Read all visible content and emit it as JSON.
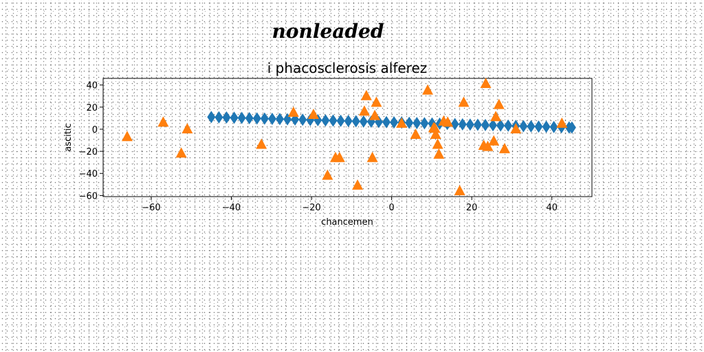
{
  "chart_data": {
    "type": "scatter",
    "suptitle": "nonleaded",
    "title": "i phacosclerosis alferez",
    "xlabel": "chancemen",
    "ylabel": "ascitic",
    "xlim": [
      -72,
      50
    ],
    "ylim": [
      -61,
      46
    ],
    "xticks": [
      -60,
      -40,
      -20,
      0,
      20,
      40
    ],
    "xtick_labels": [
      "−60",
      "−40",
      "−20",
      "0",
      "20",
      "40"
    ],
    "yticks": [
      40,
      20,
      0,
      -20,
      -40,
      -60
    ],
    "ytick_labels": [
      "40",
      "20",
      "0",
      "−20",
      "−40",
      "−60"
    ],
    "grid": false,
    "colors": {
      "diamond": "#1f77b4",
      "triangle": "#ff7f0e"
    },
    "series": [
      {
        "marker": "diamond",
        "color": "#1f77b4",
        "x": [
          -45,
          -43.1,
          -41.2,
          -39.3,
          -37.4,
          -35.5,
          -33.6,
          -31.7,
          -29.8,
          -27.9,
          -26.0,
          -24.1,
          -22.2,
          -20.3,
          -18.4,
          -16.5,
          -14.6,
          -12.7,
          -10.8,
          -8.9,
          -7.0,
          -5.1,
          -3.2,
          -1.3,
          0.6,
          2.5,
          4.4,
          6.3,
          8.2,
          10.1,
          12.0,
          13.9,
          15.8,
          17.7,
          19.6,
          21.5,
          23.4,
          25.3,
          27.2,
          29.1,
          31.0,
          32.9,
          34.8,
          36.7,
          38.6,
          40.5,
          42.4,
          44.3,
          45.0
        ],
        "y": [
          11,
          10.8,
          10.6,
          10.4,
          10.2,
          10.0,
          9.8,
          9.6,
          9.4,
          9.2,
          9.0,
          8.8,
          8.6,
          8.4,
          8.2,
          8.0,
          7.8,
          7.6,
          7.4,
          7.2,
          7.0,
          6.8,
          6.6,
          6.4,
          6.2,
          6.0,
          5.8,
          5.6,
          5.4,
          5.2,
          5.0,
          4.8,
          4.6,
          4.4,
          4.2,
          4.0,
          3.8,
          3.6,
          3.4,
          3.2,
          3.0,
          2.8,
          2.6,
          2.4,
          2.2,
          2.0,
          1.8,
          1.6,
          1.5
        ]
      },
      {
        "marker": "triangle",
        "color": "#ff7f0e",
        "x": [
          -66,
          -57,
          -52.5,
          -51,
          -32.5,
          -24.5,
          -19.5,
          -16,
          -14,
          -13,
          -8.5,
          -6.8,
          -6.3,
          -4.8,
          -4.2,
          -3.8,
          2.5,
          6,
          9,
          10.5,
          10.8,
          11,
          11.5,
          11.8,
          13,
          14,
          17,
          18,
          23,
          23.5,
          24,
          25.5,
          26,
          26.8,
          28.2,
          31,
          42.5
        ],
        "y": [
          -7,
          6,
          -22,
          0,
          -14,
          15,
          13,
          -42,
          -26,
          -26,
          -51,
          16,
          30,
          -26,
          12,
          24,
          5,
          -5,
          35,
          1,
          0.5,
          -5,
          -14,
          -23,
          7,
          6,
          -56,
          24,
          -15,
          41,
          -16,
          -11,
          11,
          22,
          -18,
          0,
          5
        ]
      }
    ]
  }
}
